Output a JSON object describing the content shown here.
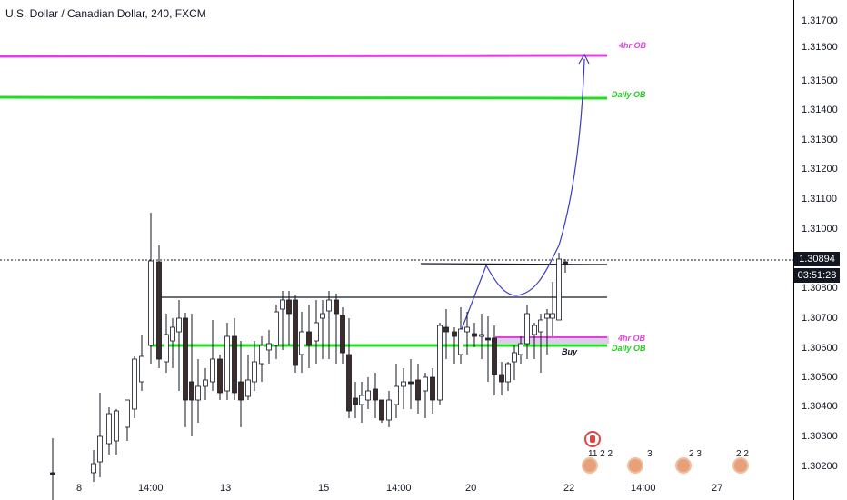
{
  "chart": {
    "title": "U.S. Dollar / Canadian Dollar, 240, FXCM",
    "current_price": "1.30894",
    "countdown": "03:51:28",
    "colors": {
      "up_candle": "#ffffff",
      "down_candle": "#3c2c2a",
      "ob_4hr": "#e040e0",
      "ob_daily": "#22dd22",
      "arrow": "#3b3bc4",
      "zone": "#d8c8e8"
    }
  },
  "price_axis": {
    "ticks": [
      "1.31700",
      "1.31600",
      "1.31500",
      "1.31400",
      "1.31300",
      "1.31200",
      "1.31100",
      "1.31000",
      "1.30800",
      "1.30700",
      "1.30600",
      "1.30500",
      "1.30400",
      "1.30300",
      "1.30200"
    ]
  },
  "time_axis": {
    "ticks": [
      "8",
      "14:00",
      "13",
      "15",
      "14:00",
      "20",
      "22",
      "14:00",
      "27"
    ]
  },
  "annotations": {
    "ob_4hr_top": "4hr OB",
    "ob_daily_top": "Daily OB",
    "ob_4hr_bottom": "4hr OB",
    "ob_daily_bottom": "Daily OB",
    "buy": "Buy"
  },
  "events": [
    {
      "icon": "canada-flag-icon",
      "count": ""
    },
    {
      "icon": "us-flag-icon",
      "count": "11 2 2"
    },
    {
      "icon": "us-flag-icon",
      "count": "3"
    },
    {
      "icon": "us-flag-icon",
      "count": "2 3"
    },
    {
      "icon": "us-flag-icon",
      "count": "2 2"
    }
  ]
}
